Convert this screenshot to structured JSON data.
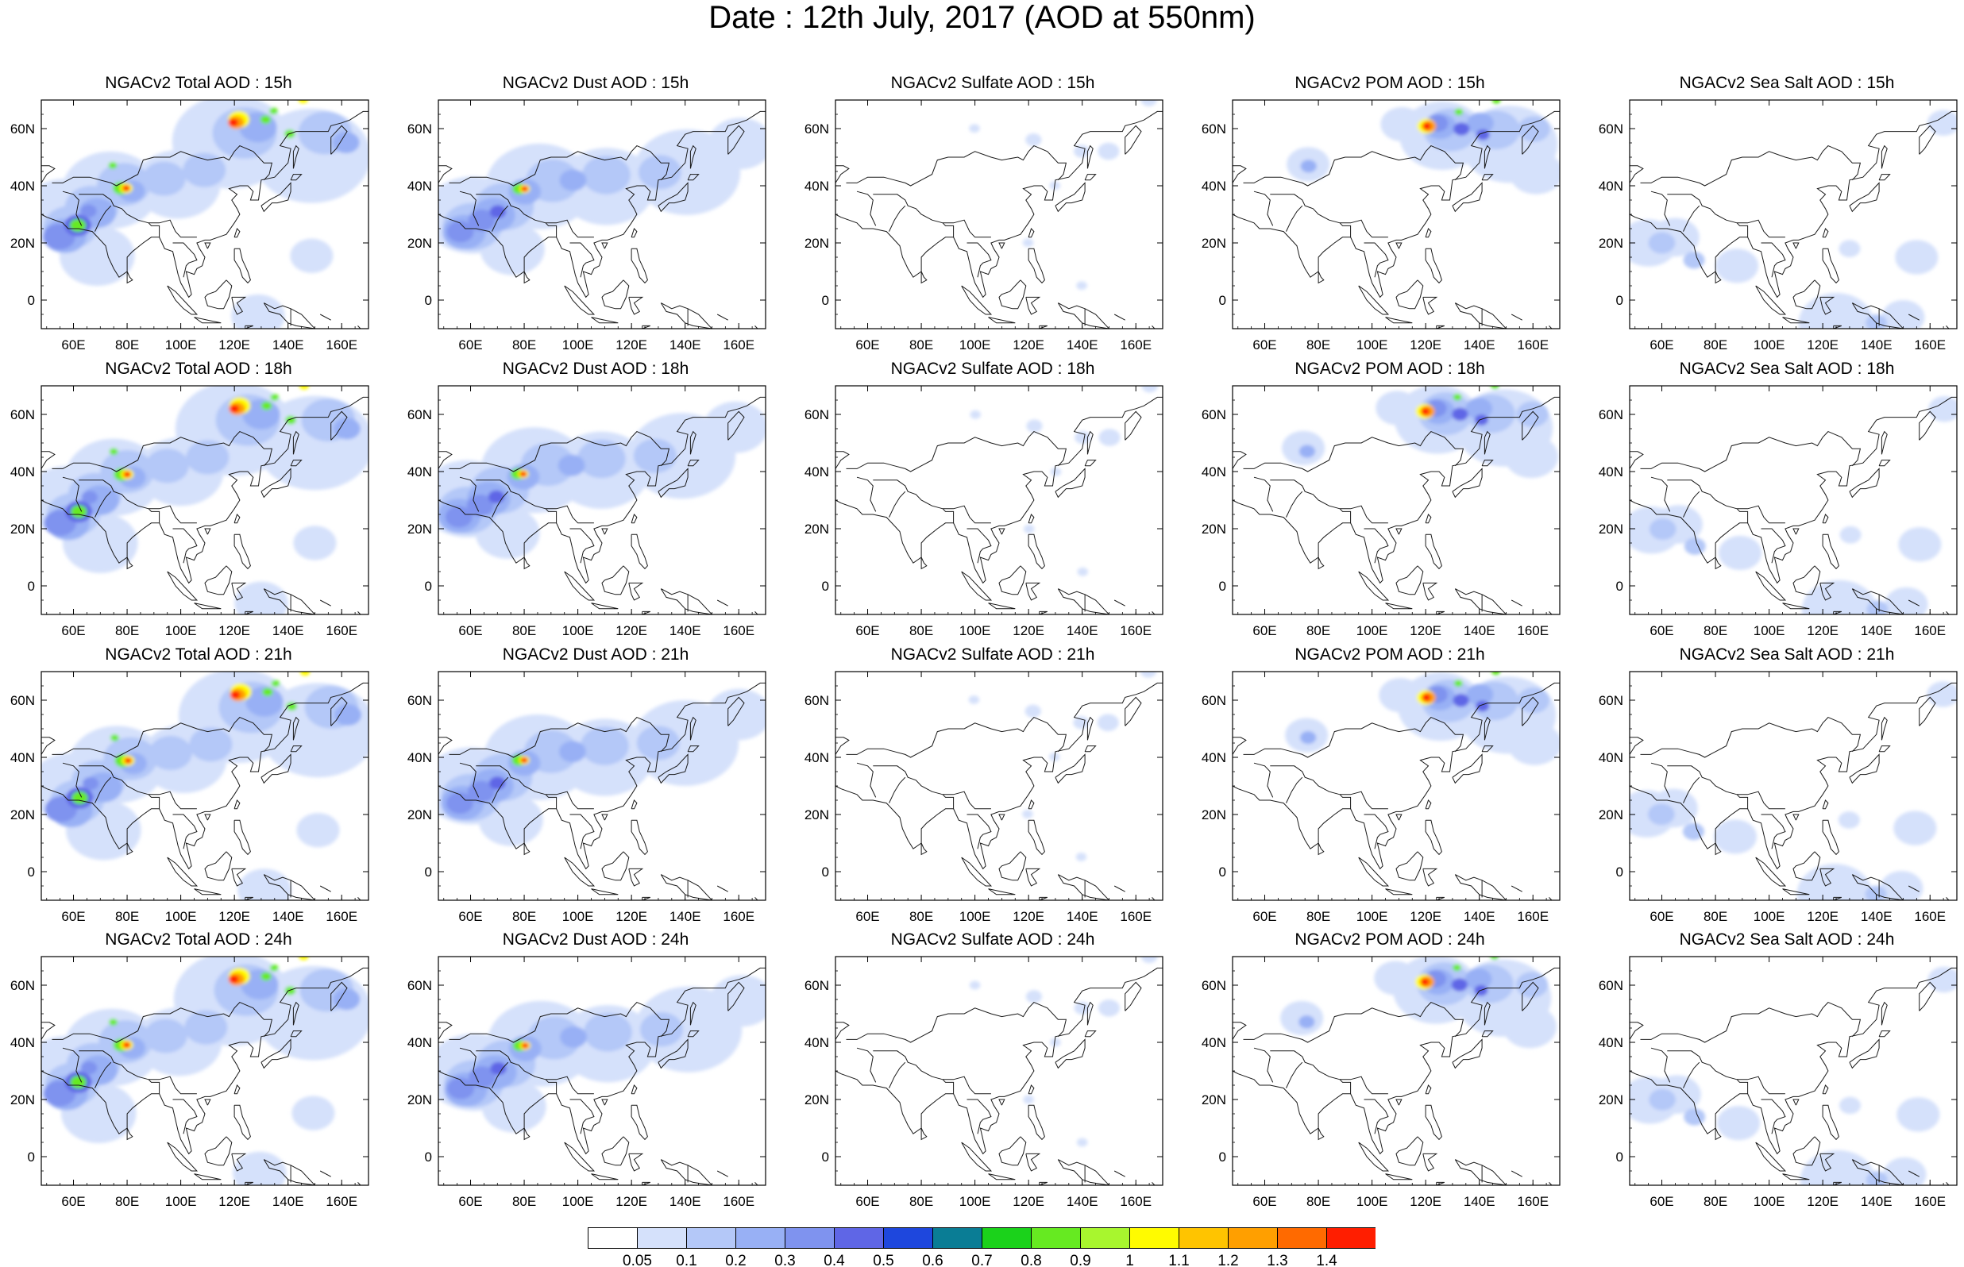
{
  "title": "Date : 12th July, 2017 (AOD at 550nm)",
  "map": {
    "lon_range": [
      48,
      170
    ],
    "lat_range": [
      -10,
      70
    ],
    "lon_ticks": [
      60,
      80,
      100,
      120,
      140,
      160
    ],
    "lon_labels": [
      "60E",
      "80E",
      "100E",
      "120E",
      "140E",
      "160E"
    ],
    "lat_ticks": [
      0,
      20,
      40,
      60
    ],
    "lat_labels": [
      "0",
      "20N",
      "40N",
      "60N"
    ]
  },
  "columns": [
    "Total",
    "Dust",
    "Sulfate",
    "POM",
    "Sea Salt"
  ],
  "hours": [
    "15h",
    "18h",
    "21h",
    "24h"
  ],
  "panel_titles": [
    [
      "NGACv2 Total AOD : 15h",
      "NGACv2 Dust AOD : 15h",
      "NGACv2 Sulfate AOD : 15h",
      "NGACv2 POM AOD : 15h",
      "NGACv2 Sea Salt AOD : 15h"
    ],
    [
      "NGACv2 Total AOD : 18h",
      "NGACv2 Dust AOD : 18h",
      "NGACv2 Sulfate AOD : 18h",
      "NGACv2 POM AOD : 18h",
      "NGACv2 Sea Salt AOD : 18h"
    ],
    [
      "NGACv2 Total AOD : 21h",
      "NGACv2 Dust AOD : 21h",
      "NGACv2 Sulfate AOD : 21h",
      "NGACv2 POM AOD : 21h",
      "NGACv2 Sea Salt AOD : 21h"
    ],
    [
      "NGACv2 Total AOD : 24h",
      "NGACv2 Dust AOD : 24h",
      "NGACv2 Sulfate AOD : 24h",
      "NGACv2 POM AOD : 24h",
      "NGACv2 Sea Salt  AOD : 24h"
    ]
  ],
  "colorbar": {
    "labels": [
      "0.05",
      "0.1",
      "0.2",
      "0.3",
      "0.4",
      "0.5",
      "0.6",
      "0.7",
      "0.8",
      "0.9",
      "1",
      "1.1",
      "1.2",
      "1.3",
      "1.4"
    ],
    "colors": [
      "#ffffff",
      "#d5e1fb",
      "#b4c8f8",
      "#98b0f5",
      "#7f93ef",
      "#5f66e6",
      "#1e47dd",
      "#0a7d95",
      "#1bd21b",
      "#66ea21",
      "#a8f62e",
      "#fffb00",
      "#ffc400",
      "#ff9f00",
      "#ff6a00",
      "#ff1e00"
    ]
  },
  "field_colors": {
    "faint": "#d5e1fb",
    "light": "#b4c8f8",
    "mid": "#98b0f5",
    "blue": "#7f93ef",
    "deep": "#5f66e6",
    "green": "#66ea21",
    "yellow": "#fffb00",
    "orange": "#ff9f00",
    "red": "#ff1e00"
  }
}
